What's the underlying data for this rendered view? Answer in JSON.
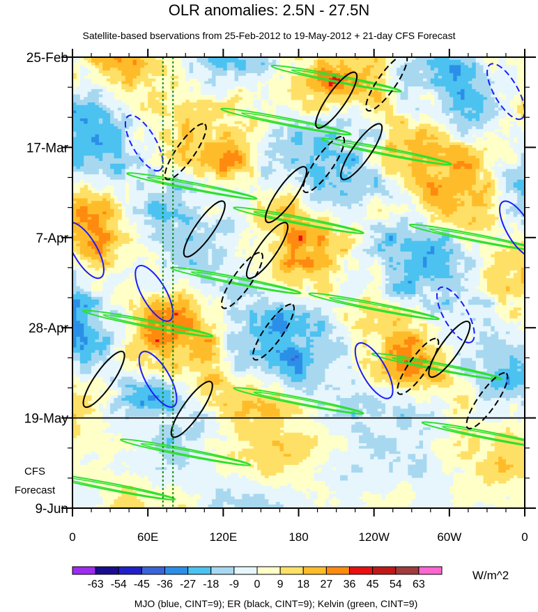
{
  "chart_data": {
    "type": "heatmap",
    "title": "OLR anomalies: 2.5N - 27.5N",
    "subtitle": "Satellite-based bservations from 25-Feb-2012 to 19-May-2012 + 21-day CFS Forecast",
    "x_ticks": [
      {
        "lon": 0,
        "label": "0"
      },
      {
        "lon": 60,
        "label": "60E"
      },
      {
        "lon": 120,
        "label": "120E"
      },
      {
        "lon": 180,
        "label": "180"
      },
      {
        "lon": 240,
        "label": "120W"
      },
      {
        "lon": 300,
        "label": "60W"
      },
      {
        "lon": 360,
        "label": "0"
      }
    ],
    "xlim": [
      0,
      360
    ],
    "y_axis": {
      "start_date": "25-Feb-2012",
      "total_days": 105,
      "ticks": [
        {
          "day": 0,
          "label": "25-Feb"
        },
        {
          "day": 21,
          "label": "17-Mar"
        },
        {
          "day": 42,
          "label": "7-Apr"
        },
        {
          "day": 63,
          "label": "28-Apr"
        },
        {
          "day": 84,
          "label": "19-May"
        },
        {
          "day": 105,
          "label": "9-Jun"
        }
      ],
      "forecast_label_line1": "CFS",
      "forecast_label_line2": "Forecast"
    },
    "forecast_start_day": 84,
    "reference_longitudes": [
      72,
      80
    ],
    "colorbar": {
      "units": "W/m^2",
      "levels": [
        -63,
        -54,
        -45,
        -36,
        -27,
        -18,
        -9,
        0,
        9,
        18,
        27,
        36,
        45,
        54,
        63
      ],
      "labels": [
        "-63",
        "-54",
        "-45",
        "-36",
        "-27",
        "-18",
        "-9",
        "0",
        "9",
        "18",
        "27",
        "36",
        "45",
        "54",
        "63"
      ],
      "colors": [
        "#9d2bf0",
        "#1a0c8f",
        "#2020c8",
        "#3a64d8",
        "#2b8fe8",
        "#4cc2f0",
        "#a8d8f0",
        "#e6f6fc",
        "#ffffc8",
        "#ffe066",
        "#ffbc2a",
        "#ff8a10",
        "#e81010",
        "#c01818",
        "#a03c3c",
        "#ff66d0"
      ]
    },
    "footer": "MJO (blue, CINT=9); ER (black, CINT=9); Kelvin (green, CINT=9)",
    "contours": {
      "mjo_color": "#1a1aff",
      "er_color": "#000000",
      "kelvin_color": "#2ee02e"
    }
  }
}
